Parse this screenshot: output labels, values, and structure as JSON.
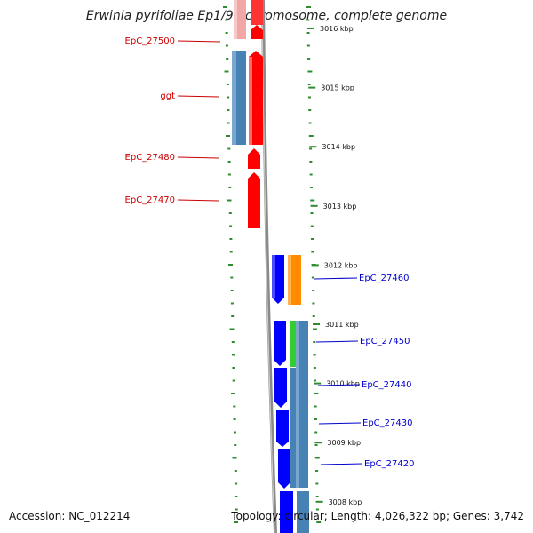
{
  "title": "Erwinia pyrifoliae Ep1/96 chromosome, complete genome",
  "accession": "Accession: NC_012214",
  "summary": "Topology: circular; Length: 4,026,322 bp; Genes: 3,742",
  "colors": {
    "forward_gene": "#ff0000",
    "forward_cds": "#4682b4",
    "reverse_gene": "#0000ff",
    "reverse_cds": "#4682b4",
    "orange_feature": "#ff8c00",
    "green_feature": "#33cc33",
    "backbone": "#888888",
    "tick": "#2e8b2e",
    "forward_label": "#cc0000",
    "reverse_label": "#0000cc"
  },
  "scale": {
    "unit": "kbp",
    "ticks": [
      {
        "kbp": 3016,
        "label": "3016 kbp"
      },
      {
        "kbp": 3015,
        "label": "3015 kbp"
      },
      {
        "kbp": 3014,
        "label": "3014 kbp"
      },
      {
        "kbp": 3013,
        "label": "3013 kbp"
      },
      {
        "kbp": 3012,
        "label": "3012 kbp"
      },
      {
        "kbp": 3011,
        "label": "3011 kbp"
      },
      {
        "kbp": 3010,
        "label": "3010 kbp"
      },
      {
        "kbp": 3009,
        "label": "3009 kbp"
      },
      {
        "kbp": 3008,
        "label": "3008 kbp"
      }
    ]
  },
  "forward_labels": [
    "EpC_27500",
    "ggt",
    "EpC_27480",
    "EpC_27470"
  ],
  "reverse_labels": [
    "EpC_27460",
    "EpC_27450",
    "EpC_27440",
    "EpC_27430",
    "EpC_27420"
  ]
}
